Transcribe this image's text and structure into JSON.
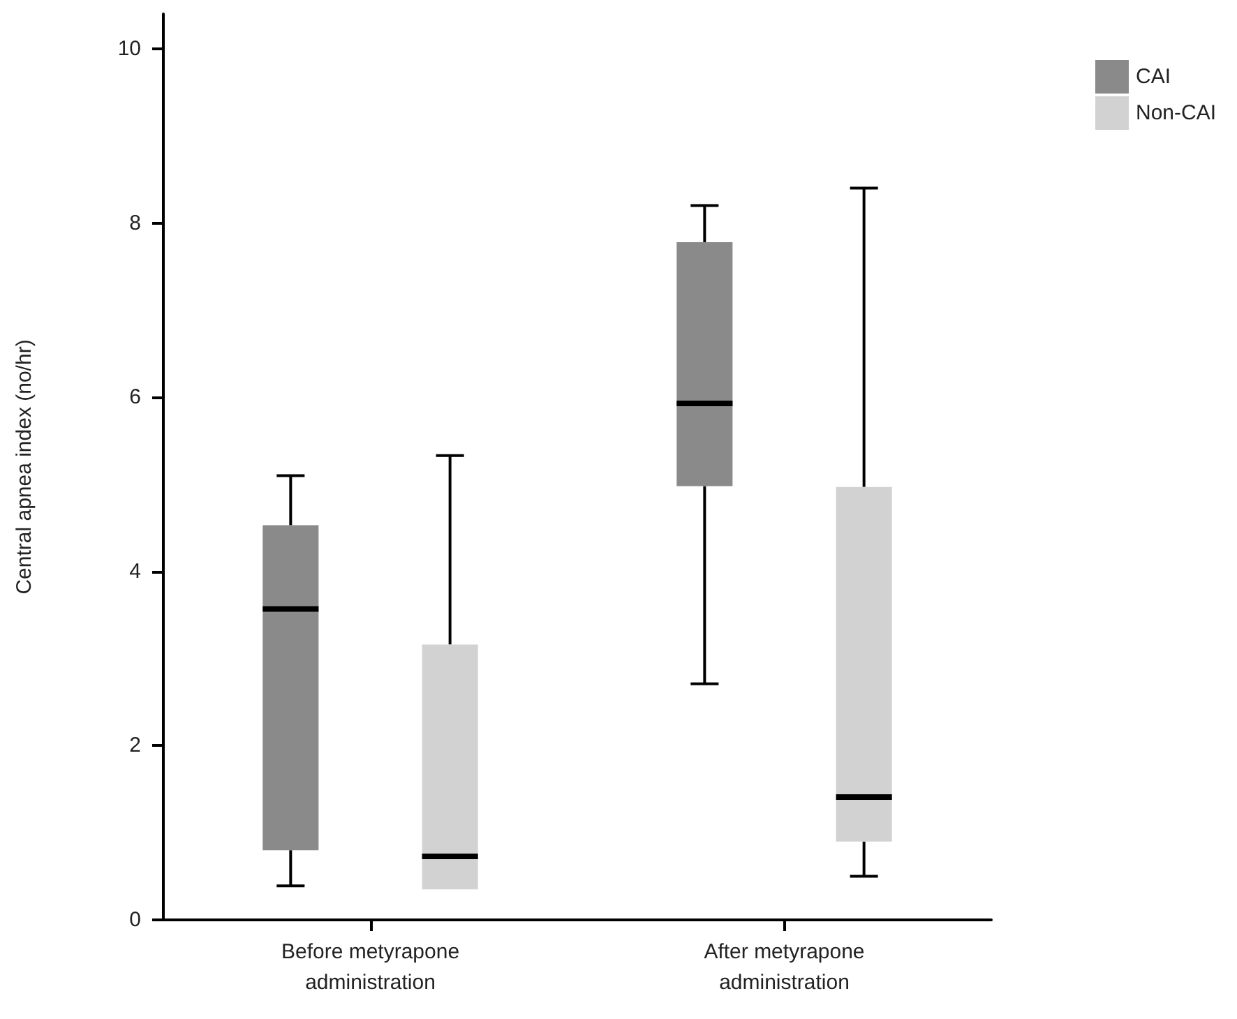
{
  "chart_data": {
    "type": "box",
    "ylabel": "Central apnea index (no/hr)",
    "categories": [
      "Before metyrapone\nadministration",
      "After metyrapone\nadministration"
    ],
    "series": [
      {
        "name": "CAI",
        "color": "#8a8a8a",
        "boxes": [
          {
            "low": 0.39,
            "q1": 0.8,
            "median": 3.57,
            "q3": 4.53,
            "high": 5.1
          },
          {
            "low": 2.71,
            "q1": 4.98,
            "median": 5.93,
            "q3": 7.78,
            "high": 8.2
          }
        ]
      },
      {
        "name": "Non-CAI",
        "color": "#d2d2d2",
        "boxes": [
          {
            "low": 0.35,
            "q1": 0.35,
            "median": 0.73,
            "q3": 3.16,
            "high": 5.33
          },
          {
            "low": 0.5,
            "q1": 0.9,
            "median": 1.41,
            "q3": 4.97,
            "high": 8.4
          }
        ]
      }
    ],
    "ylim": [
      0,
      10.4
    ],
    "yticks": [
      0,
      2,
      4,
      6,
      8,
      10
    ],
    "grid": false,
    "legend": "top right"
  }
}
